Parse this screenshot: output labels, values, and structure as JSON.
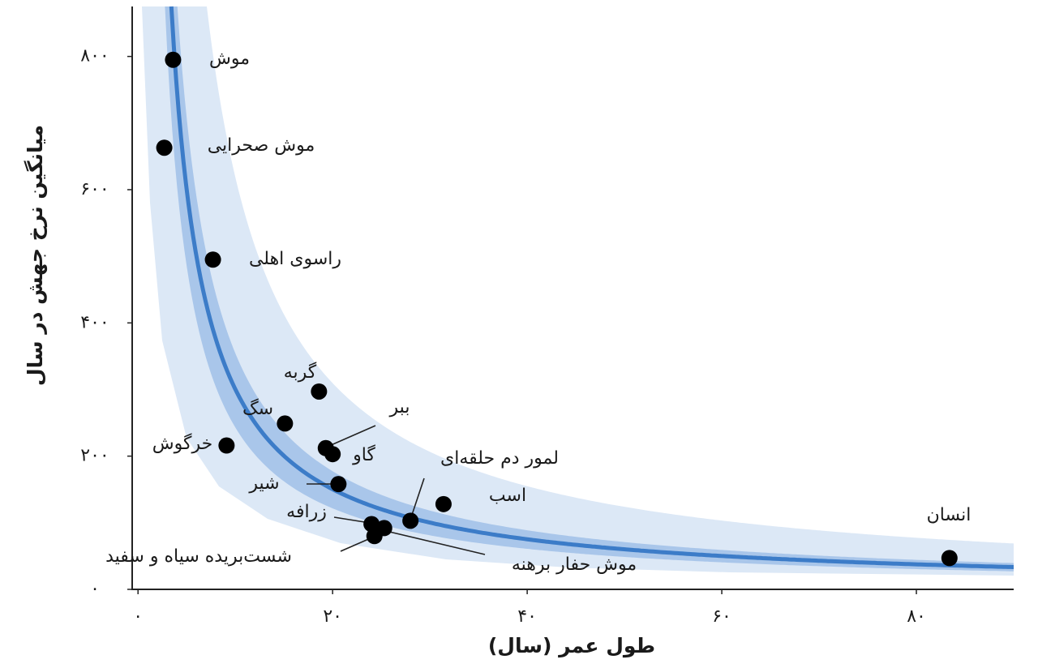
{
  "chart_data": {
    "type": "scatter",
    "x_label": "طول عمر (سال)",
    "y_label": "میانگین نرخ جهش در سال",
    "labels": [
      "موش",
      "موش صحرایی",
      "راسوی اهلی",
      "گربه",
      "سگ",
      "خرگوش",
      "ببر",
      "گاو",
      "شیر",
      "زرافه",
      "شست‌بریده سیاه و سفید",
      "موش حفار برهنه",
      "لمور دم حلقه‌ای",
      "اسب",
      "انسان"
    ],
    "x": [
      3.6,
      2.7,
      7.7,
      18.6,
      15.1,
      9.1,
      19.3,
      20.0,
      20.6,
      24.0,
      24.3,
      25.3,
      28.0,
      31.4,
      83.4
    ],
    "values": [
      795,
      663,
      495,
      297,
      249,
      216,
      212,
      203,
      158,
      98,
      80,
      92,
      103,
      128,
      47
    ],
    "color": "#000000",
    "xlim": [
      -0.6,
      90
    ],
    "ylim": [
      0,
      875
    ],
    "xticks": [
      {
        "value": 0,
        "label": "۰"
      },
      {
        "value": 20,
        "label": "۲۰"
      },
      {
        "value": 40,
        "label": "۴۰"
      },
      {
        "value": 60,
        "label": "۶۰"
      },
      {
        "value": 80,
        "label": "۸۰"
      }
    ],
    "yticks": [
      {
        "value": 0,
        "label": "۰"
      },
      {
        "value": 200,
        "label": "۲۰۰"
      },
      {
        "value": 400,
        "label": "۴۰۰"
      },
      {
        "value": 600,
        "label": "۶۰۰"
      },
      {
        "value": 800,
        "label": "۸۰۰"
      }
    ]
  }
}
